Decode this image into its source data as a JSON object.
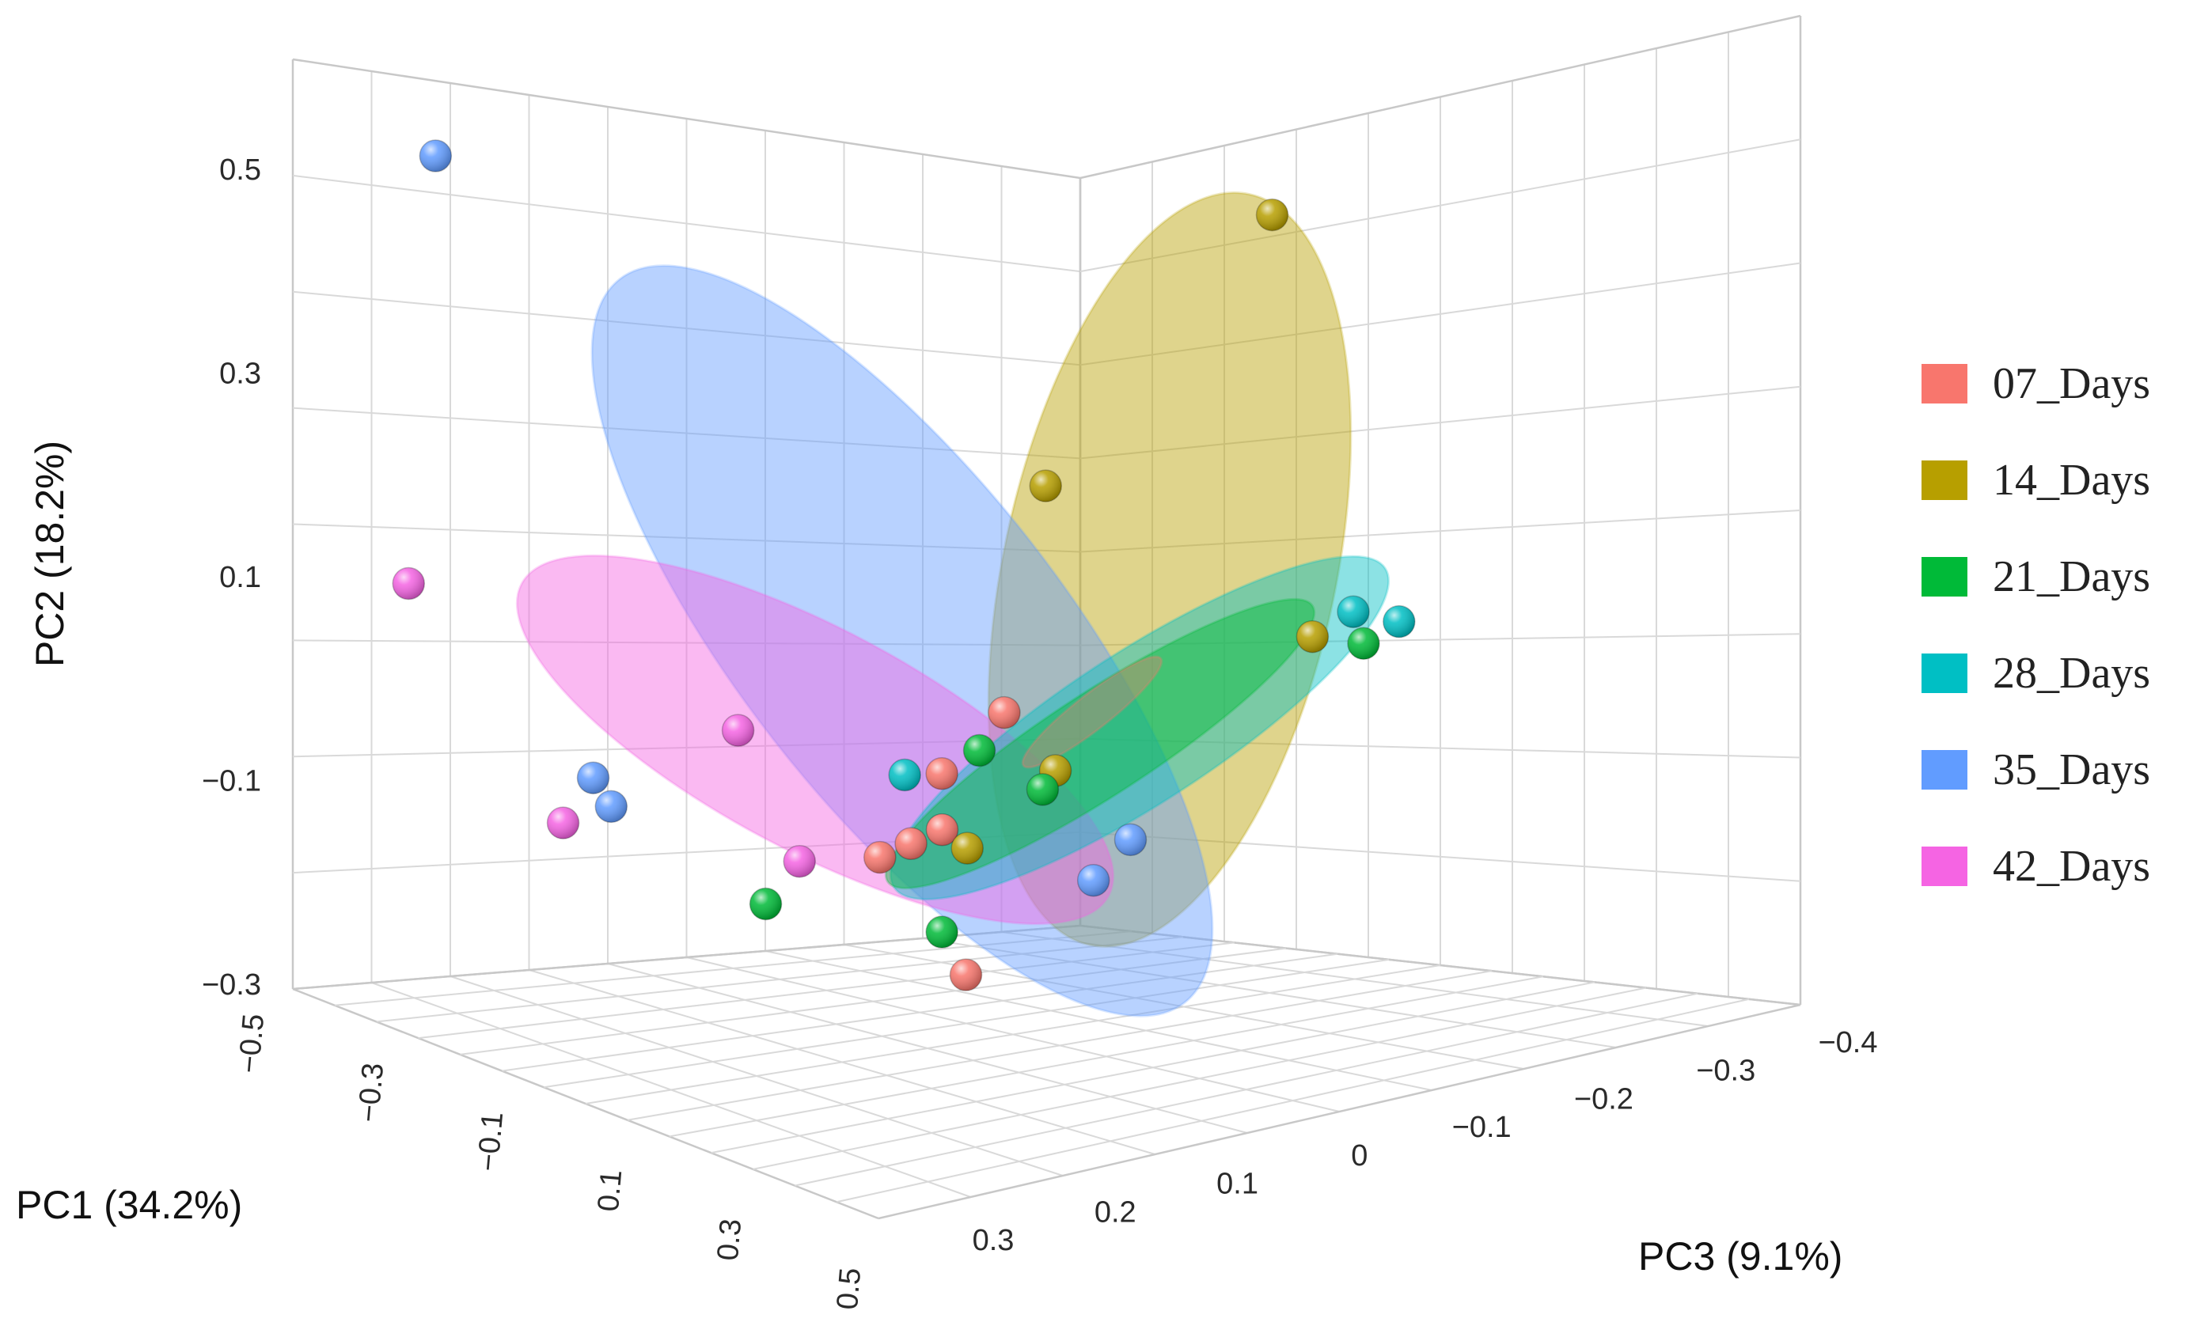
{
  "chart_data": {
    "type": "scatter",
    "projection": "3d",
    "axes": {
      "pc1": {
        "label": "PC1 (34.2%)",
        "range": [
          -0.5,
          0.5
        ],
        "ticks": [
          "−0.5",
          "−0.3",
          "−0.1",
          "0.1",
          "0.3",
          "0.5"
        ]
      },
      "pc2": {
        "label": "PC2 (18.2%)",
        "range": [
          -0.3,
          0.5
        ],
        "ticks": [
          "−0.3",
          "−0.1",
          "0.1",
          "0.3",
          "0.5"
        ]
      },
      "pc3": {
        "label": "PC3 (9.1%)",
        "range": [
          -0.4,
          0.3
        ],
        "ticks": [
          "0.3",
          "0.2",
          "0.1",
          "0",
          "−0.1",
          "−0.2",
          "−0.3",
          "−0.4"
        ]
      }
    },
    "grid": true,
    "legend_position": "right",
    "series": [
      {
        "name": "07_Days",
        "color": "#F8766D",
        "points": [
          {
            "pc1": 0.12,
            "pc2": 0.02,
            "pc3": 0.02
          },
          {
            "pc1": 0.1,
            "pc2": -0.03,
            "pc3": 0.06
          },
          {
            "pc1": 0.14,
            "pc2": -0.07,
            "pc3": 0.08
          },
          {
            "pc1": 0.13,
            "pc2": -0.08,
            "pc3": 0.1
          },
          {
            "pc1": 0.12,
            "pc2": -0.09,
            "pc3": 0.12
          },
          {
            "pc1": 0.3,
            "pc2": -0.16,
            "pc3": 0.14
          }
        ]
      },
      {
        "name": "14_Days",
        "color": "#B79F00",
        "points": [
          {
            "pc1": -0.1,
            "pc2": 0.38,
            "pc3": -0.32
          },
          {
            "pc1": 0.05,
            "pc2": 0.2,
            "pc3": -0.05
          },
          {
            "pc1": 0.08,
            "pc2": 0.03,
            "pc3": -0.25
          },
          {
            "pc1": 0.2,
            "pc2": -0.02,
            "pc3": 0.02
          },
          {
            "pc1": 0.18,
            "pc2": -0.08,
            "pc3": 0.08
          }
        ]
      },
      {
        "name": "21_Days",
        "color": "#00BA38",
        "points": [
          {
            "pc1": 0.1,
            "pc2": 0.02,
            "pc3": -0.28
          },
          {
            "pc1": 0.12,
            "pc2": -0.01,
            "pc3": 0.04
          },
          {
            "pc1": 0.18,
            "pc2": -0.04,
            "pc3": 0.02
          },
          {
            "pc1": 0.2,
            "pc2": -0.09,
            "pc3": 0.25
          },
          {
            "pc1": 0.22,
            "pc2": -0.14,
            "pc3": 0.12
          }
        ]
      },
      {
        "name": "28_Days",
        "color": "#00BFC4",
        "points": [
          {
            "pc1": 0.05,
            "pc2": 0.04,
            "pc3": -0.3
          },
          {
            "pc1": 0.08,
            "pc2": 0.03,
            "pc3": -0.32
          },
          {
            "pc1": 0.12,
            "pc2": -0.02,
            "pc3": 0.1
          }
        ]
      },
      {
        "name": "35_Days",
        "color": "#619CFF",
        "points": [
          {
            "pc1": -0.45,
            "pc2": 0.45,
            "pc3": 0.2
          },
          {
            "pc1": -0.15,
            "pc2": -0.05,
            "pc3": 0.22
          },
          {
            "pc1": -0.12,
            "pc2": -0.07,
            "pc3": 0.22
          },
          {
            "pc1": 0.18,
            "pc2": -0.1,
            "pc3": -0.05
          },
          {
            "pc1": 0.22,
            "pc2": -0.12,
            "pc3": 0.0
          }
        ]
      },
      {
        "name": "42_Days",
        "color": "#F564E3",
        "points": [
          {
            "pc1": -0.4,
            "pc2": 0.08,
            "pc3": 0.25
          },
          {
            "pc1": -0.05,
            "pc2": 0.0,
            "pc3": 0.15
          },
          {
            "pc1": -0.2,
            "pc2": -0.1,
            "pc3": 0.22
          },
          {
            "pc1": 0.05,
            "pc2": -0.1,
            "pc3": 0.15
          }
        ]
      }
    ]
  },
  "legend": {
    "items": [
      {
        "label": "07_Days",
        "color": "#F8766D"
      },
      {
        "label": "14_Days",
        "color": "#B79F00"
      },
      {
        "label": "21_Days",
        "color": "#00BA38"
      },
      {
        "label": "28_Days",
        "color": "#00BFC4"
      },
      {
        "label": "35_Days",
        "color": "#619CFF"
      },
      {
        "label": "42_Days",
        "color": "#F564E3"
      }
    ]
  }
}
